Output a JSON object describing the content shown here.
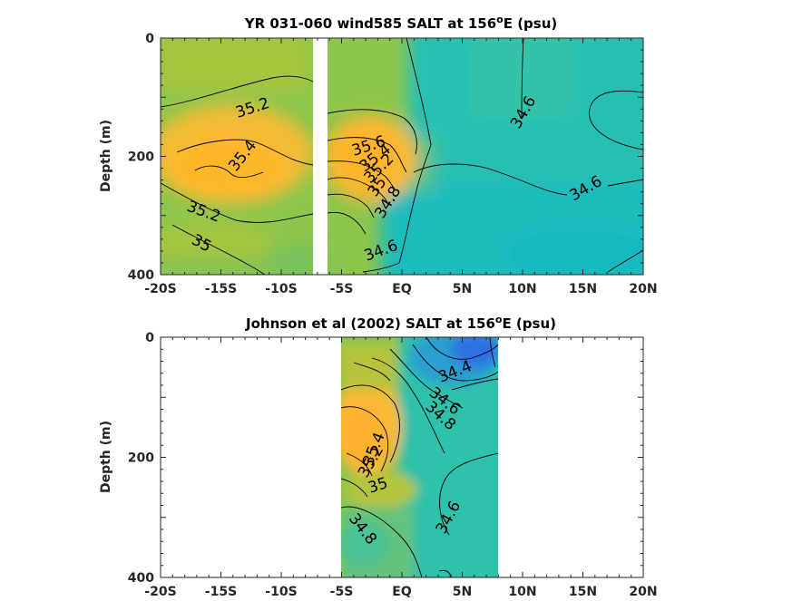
{
  "chart_data": [
    {
      "type": "heatmap",
      "title": "YR 031-060 wind585 SALT at 156",
      "title_sup": "o",
      "title_tail": "E (psu)",
      "ylabel": "Depth (m)",
      "xlim": [
        -20,
        20
      ],
      "ylim": [
        0,
        400
      ],
      "y_reversed": true,
      "x_ticks": [
        -20,
        -15,
        -10,
        -5,
        0,
        5,
        10,
        15,
        20
      ],
      "x_tick_labels": [
        "-20S",
        "-15S",
        "-10S",
        "-5S",
        "EQ",
        "5N",
        "10N",
        "15N",
        "20N"
      ],
      "y_ticks": [
        0,
        200,
        400
      ],
      "y_tick_labels": [
        "0",
        "200",
        "400"
      ],
      "data_x_range": [
        -20,
        20
      ],
      "gap_x_range": [
        -7.2,
        -6.1
      ],
      "contour_labels": [
        "35.2",
        "35.4",
        "35.2",
        "35",
        "35.6",
        "35.4",
        "35.2",
        "35",
        "34.8",
        "34.6",
        "34.6",
        "34.6"
      ]
    },
    {
      "type": "heatmap",
      "title": "Johnson et al (2002) SALT at 156",
      "title_sup": "o",
      "title_tail": "E (psu)",
      "ylabel": "Depth (m)",
      "xlim": [
        -20,
        20
      ],
      "ylim": [
        0,
        400
      ],
      "y_reversed": true,
      "x_ticks": [
        -20,
        -15,
        -10,
        -5,
        0,
        5,
        10,
        15,
        20
      ],
      "x_tick_labels": [
        "-20S",
        "-15S",
        "-10S",
        "-5S",
        "EQ",
        "5N",
        "10N",
        "15N",
        "20N"
      ],
      "y_ticks": [
        0,
        200,
        400
      ],
      "y_tick_labels": [
        "0",
        "200",
        "400"
      ],
      "data_x_range": [
        -5,
        8
      ],
      "contour_labels": [
        "34.4",
        "34.6",
        "34.8",
        "35.4",
        "35.2",
        "35",
        "34.8",
        "34.6",
        "34.8"
      ]
    }
  ],
  "colors": {
    "salty": "#fdb82f",
    "mid": "#8cc34e",
    "fresh": "#1cbfb7",
    "freshest": "#2c7fe0"
  }
}
